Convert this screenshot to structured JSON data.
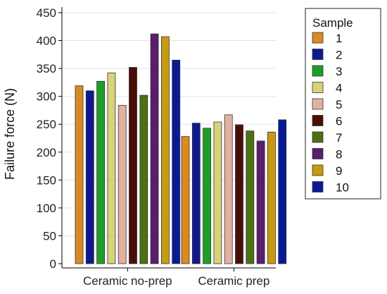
{
  "chart_data": {
    "type": "bar",
    "categories": [
      "Ceramic no-prep",
      "Ceramic prep"
    ],
    "ylabel": "Failure force (N)",
    "xlabel": "",
    "ylim": [
      0,
      450
    ],
    "yticks": [
      0,
      50,
      100,
      150,
      200,
      250,
      300,
      350,
      400,
      450
    ],
    "grid": true,
    "legend": {
      "title": "Sample",
      "position": "right"
    },
    "series": [
      {
        "name": "1",
        "color": "#d98a22",
        "values": [
          319,
          228
        ]
      },
      {
        "name": "2",
        "color": "#10188f",
        "values": [
          310,
          252
        ]
      },
      {
        "name": "3",
        "color": "#1f9e27",
        "values": [
          327,
          243
        ]
      },
      {
        "name": "4",
        "color": "#d9d27a",
        "values": [
          342,
          254
        ]
      },
      {
        "name": "5",
        "color": "#e2b29e",
        "values": [
          284,
          267
        ]
      },
      {
        "name": "6",
        "color": "#4a0e06",
        "values": [
          352,
          249
        ]
      },
      {
        "name": "7",
        "color": "#4c7012",
        "values": [
          302,
          238
        ]
      },
      {
        "name": "8",
        "color": "#5a1d6e",
        "values": [
          412,
          220
        ]
      },
      {
        "name": "9",
        "color": "#c89a12",
        "values": [
          407,
          236
        ]
      },
      {
        "name": "10",
        "color": "#0a1a96",
        "values": [
          365,
          258
        ]
      }
    ]
  }
}
